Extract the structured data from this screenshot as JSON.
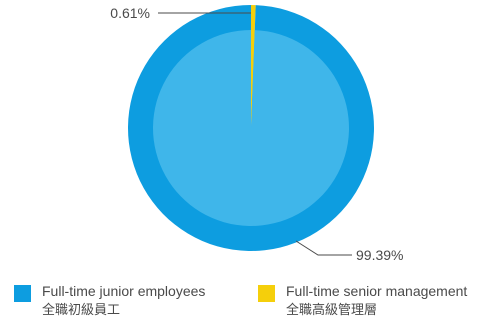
{
  "chart_data": {
    "type": "pie",
    "title": "",
    "slices": [
      {
        "name": "Full-time junior employees",
        "name_zh": "全職初級員工",
        "value": 99.39,
        "label": "99.39%",
        "color": "#0d9de0",
        "inner_color": "#3fb6ea"
      },
      {
        "name": "Full-time senior management",
        "name_zh": "全職高級管理層",
        "value": 0.61,
        "label": "0.61%",
        "color": "#f5cf0b",
        "inner_color": "#f5cf0b"
      }
    ],
    "legend_position": "bottom"
  },
  "colors": {
    "text": "#4a4a4a",
    "leader_line": "#4a4a4a"
  }
}
